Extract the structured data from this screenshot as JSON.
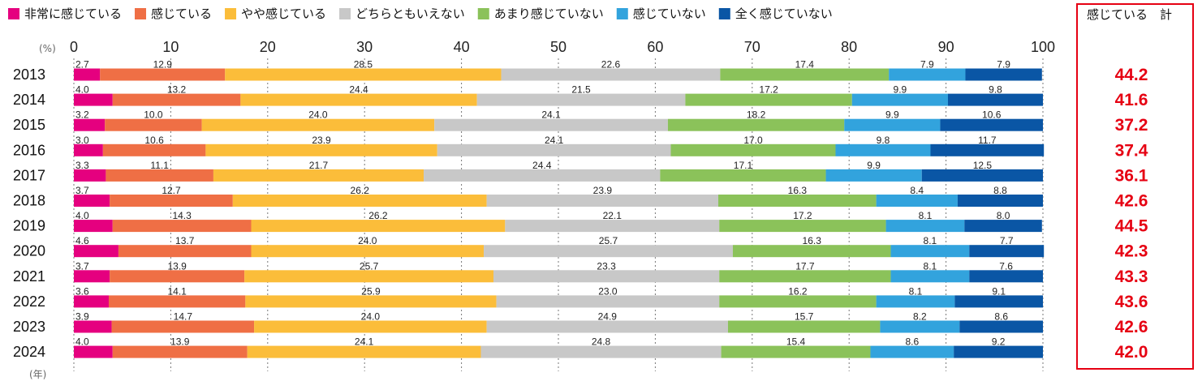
{
  "chart_data": {
    "type": "bar",
    "orientation": "horizontal",
    "stacked": true,
    "x_unit": "(%)",
    "y_unit": "(年)",
    "xlim": [
      0,
      100
    ],
    "x_ticks": [
      0,
      10,
      20,
      30,
      40,
      50,
      60,
      70,
      80,
      90,
      100
    ],
    "grid": true,
    "legend_position": "top",
    "categories": [
      "2013",
      "2014",
      "2015",
      "2016",
      "2017",
      "2018",
      "2019",
      "2020",
      "2021",
      "2022",
      "2023",
      "2024"
    ],
    "series": [
      {
        "name": "非常に感じている",
        "color": "#e5007f",
        "values": [
          2.7,
          4.0,
          3.2,
          3.0,
          3.3,
          3.7,
          4.0,
          4.6,
          3.7,
          3.6,
          3.9,
          4.0
        ]
      },
      {
        "name": "感じている",
        "color": "#ef6f45",
        "values": [
          12.9,
          13.2,
          10.0,
          10.6,
          11.1,
          12.7,
          14.3,
          13.7,
          13.9,
          14.1,
          14.7,
          13.9
        ]
      },
      {
        "name": "やや感じている",
        "color": "#fbbd3a",
        "values": [
          28.5,
          24.4,
          24.0,
          23.9,
          21.7,
          26.2,
          26.2,
          24.0,
          25.7,
          25.9,
          24.0,
          24.1
        ]
      },
      {
        "name": "どちらともいえない",
        "color": "#c8c8c8",
        "values": [
          22.6,
          21.5,
          24.1,
          24.1,
          24.4,
          23.9,
          22.1,
          25.7,
          23.3,
          23.0,
          24.9,
          24.8
        ]
      },
      {
        "name": "あまり感じていない",
        "color": "#8bc25a",
        "values": [
          17.4,
          17.2,
          18.2,
          17.0,
          17.1,
          16.3,
          17.2,
          16.3,
          17.7,
          16.2,
          15.7,
          15.4
        ]
      },
      {
        "name": "感じていない",
        "color": "#32a3dd",
        "values": [
          7.9,
          9.9,
          9.9,
          9.8,
          9.9,
          8.4,
          8.1,
          8.1,
          8.1,
          8.1,
          8.2,
          8.6
        ]
      },
      {
        "name": "全く感じていない",
        "color": "#0a56a5",
        "values": [
          7.9,
          9.8,
          10.6,
          11.7,
          12.5,
          8.8,
          8.0,
          7.7,
          7.6,
          9.1,
          8.6,
          9.2
        ]
      }
    ],
    "totals": {
      "label": "感じている　計",
      "values": [
        "44.2",
        "41.6",
        "37.2",
        "37.4",
        "36.1",
        "42.6",
        "44.5",
        "42.3",
        "43.3",
        "43.6",
        "42.6",
        "42.0"
      ]
    }
  }
}
